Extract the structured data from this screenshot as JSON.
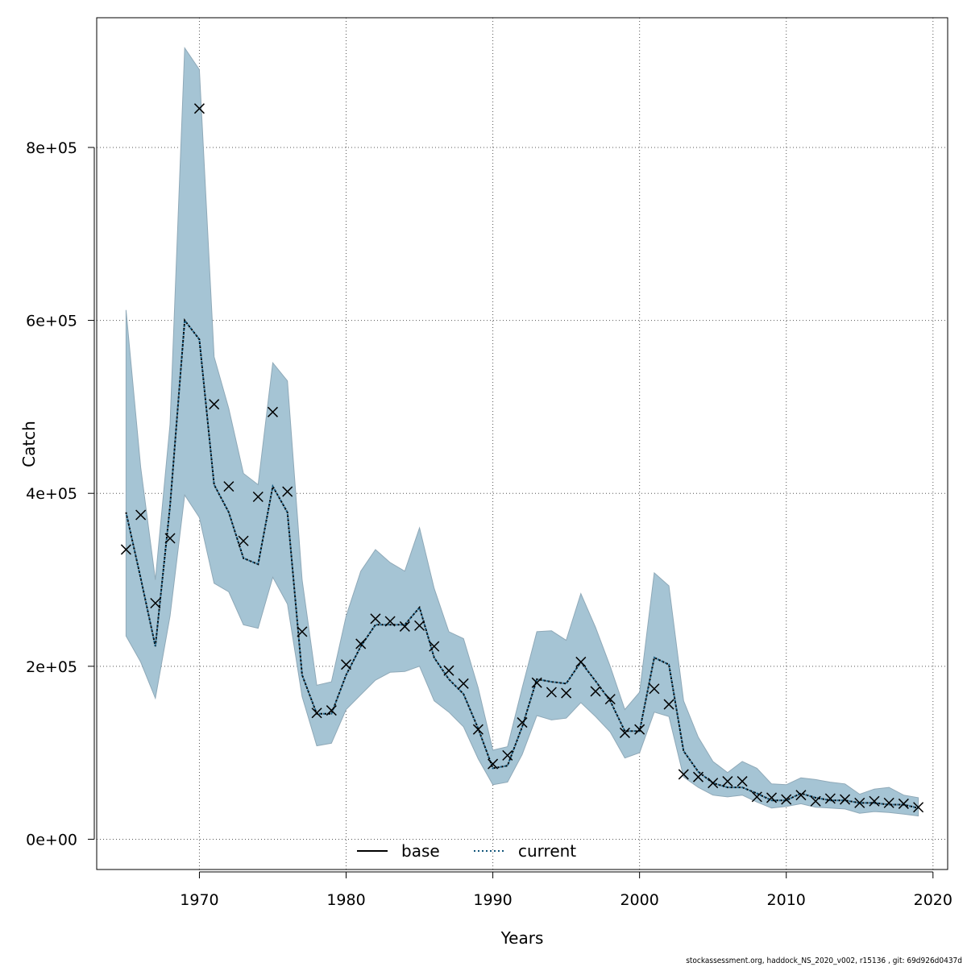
{
  "colors": {
    "band": "#a5c4d4",
    "band_edge": "#8fa9b8",
    "current_line": "#12557a",
    "grid": "#555555"
  },
  "footer": "stockassessment.org, haddock_NS_2020_v002, r15136 , git: 69d926d0437d",
  "chart_data": {
    "type": "line",
    "title": "",
    "xlabel": "Years",
    "ylabel": "Catch",
    "xlim": [
      1963,
      2021
    ],
    "ylim": [
      -35000,
      950000
    ],
    "x_ticks": [
      1970,
      1980,
      1990,
      2000,
      2010,
      2020
    ],
    "y_ticks": [
      0,
      200000,
      400000,
      600000,
      800000
    ],
    "y_tick_labels": [
      "0e+00",
      "2e+05",
      "4e+05",
      "6e+05",
      "8e+05"
    ],
    "grid": true,
    "legend": {
      "placement": "bottom",
      "entries": [
        "base",
        "current"
      ]
    },
    "years": [
      1965,
      1966,
      1967,
      1968,
      1969,
      1970,
      1971,
      1972,
      1973,
      1974,
      1975,
      1976,
      1977,
      1978,
      1979,
      1980,
      1981,
      1982,
      1983,
      1984,
      1985,
      1986,
      1987,
      1988,
      1989,
      1990,
      1991,
      1992,
      1993,
      1994,
      1995,
      1996,
      1997,
      1998,
      1999,
      2000,
      2001,
      2002,
      2003,
      2004,
      2005,
      2006,
      2007,
      2008,
      2009,
      2010,
      2011,
      2012,
      2013,
      2014,
      2015,
      2016,
      2017,
      2018,
      2019
    ],
    "series": [
      {
        "name": "observed",
        "style": "points",
        "values": [
          335000,
          375000,
          273000,
          348000,
          null,
          845000,
          503000,
          408000,
          345000,
          396000,
          494000,
          402000,
          240000,
          146000,
          149000,
          202000,
          226000,
          255000,
          252000,
          246000,
          247000,
          223000,
          195000,
          180000,
          127000,
          87000,
          97000,
          135000,
          181000,
          170000,
          169000,
          205000,
          171000,
          162000,
          123000,
          127000,
          174000,
          156000,
          75000,
          72000,
          65000,
          67000,
          67000,
          49000,
          48000,
          46000,
          51000,
          44000,
          47000,
          46000,
          42000,
          44000,
          42000,
          41000,
          37000
        ]
      },
      {
        "name": "current",
        "style": "dotted",
        "values": [
          378000,
          302000,
          223000,
          385000,
          600000,
          578000,
          410000,
          378000,
          325000,
          318000,
          408000,
          378000,
          190000,
          145000,
          145000,
          190000,
          223000,
          248000,
          248000,
          248000,
          268000,
          210000,
          185000,
          168000,
          128000,
          82000,
          85000,
          130000,
          185000,
          182000,
          180000,
          205000,
          183000,
          160000,
          125000,
          125000,
          210000,
          202000,
          102000,
          78000,
          65000,
          60000,
          60000,
          53000,
          45000,
          45000,
          53000,
          48000,
          45000,
          45000,
          42000,
          42000,
          40000,
          40000,
          36000
        ]
      },
      {
        "name": "base",
        "style": "solid",
        "values": [
          378000,
          302000,
          223000,
          385000,
          600000,
          578000,
          410000,
          378000,
          325000,
          318000,
          408000,
          378000,
          190000,
          145000,
          145000,
          190000,
          223000,
          248000,
          248000,
          248000,
          268000,
          210000,
          185000,
          168000,
          128000,
          82000,
          85000,
          130000,
          185000,
          182000,
          180000,
          205000,
          183000,
          160000,
          125000,
          125000,
          210000,
          202000,
          102000,
          78000,
          65000,
          60000,
          60000,
          53000,
          45000,
          45000,
          53000,
          48000,
          45000,
          45000,
          42000,
          42000,
          40000,
          40000,
          36000
        ]
      }
    ],
    "band": {
      "name": "confidence interval",
      "upper": [
        612000,
        430000,
        300000,
        480000,
        915000,
        890000,
        558000,
        498000,
        423000,
        410000,
        551000,
        530000,
        300000,
        178000,
        182000,
        258000,
        310000,
        335000,
        320000,
        310000,
        360000,
        290000,
        240000,
        232000,
        175000,
        103000,
        107000,
        175000,
        240000,
        241000,
        230000,
        284000,
        245000,
        200000,
        150000,
        170000,
        308000,
        293000,
        160000,
        118000,
        90000,
        77000,
        90000,
        82000,
        64000,
        63000,
        71000,
        69000,
        66000,
        64000,
        52000,
        58000,
        60000,
        51000,
        48000
      ],
      "lower": [
        235000,
        205000,
        163000,
        258000,
        398000,
        372000,
        296000,
        286000,
        248000,
        244000,
        303000,
        272000,
        165000,
        108000,
        111000,
        150000,
        167000,
        184000,
        193000,
        194000,
        200000,
        160000,
        147000,
        130000,
        93000,
        63000,
        66000,
        98000,
        143000,
        138000,
        140000,
        158000,
        142000,
        124000,
        94000,
        100000,
        147000,
        142000,
        72000,
        60000,
        51000,
        49000,
        51000,
        43000,
        36000,
        38000,
        41000,
        37000,
        36000,
        35000,
        30000,
        32000,
        31000,
        29000,
        27000
      ]
    }
  }
}
